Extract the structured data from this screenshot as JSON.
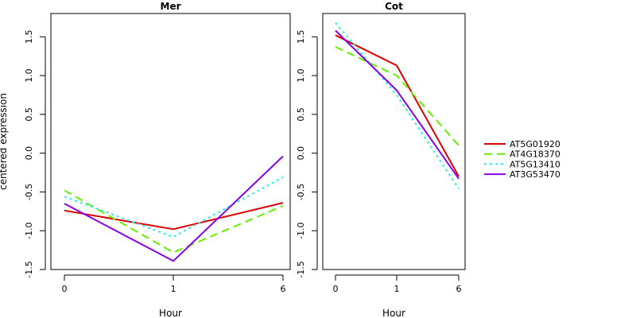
{
  "chart_data": [
    {
      "type": "line",
      "title": "Mer",
      "xlabel": "Hour",
      "ylabel": "centered expression",
      "x": [
        "0",
        "1",
        "6"
      ],
      "ylim": [
        -1.5,
        1.8
      ],
      "yticks": [
        "-1.5",
        "-1.0",
        "-0.5",
        "0.0",
        "0.5",
        "1.0",
        "1.5"
      ],
      "grid": false,
      "series": [
        {
          "name": "AT5G01920",
          "values": [
            -0.74,
            -0.98,
            -0.64
          ]
        },
        {
          "name": "AT4G18370",
          "values": [
            -0.48,
            -1.28,
            -0.68
          ]
        },
        {
          "name": "AT5G13410",
          "values": [
            -0.56,
            -1.08,
            -0.31
          ]
        },
        {
          "name": "AT3G53470",
          "values": [
            -0.65,
            -1.39,
            -0.04
          ]
        }
      ]
    },
    {
      "type": "line",
      "title": "Cot",
      "xlabel": "Hour",
      "ylabel": "",
      "x": [
        "0",
        "1",
        "6"
      ],
      "ylim": [
        -1.5,
        1.8
      ],
      "yticks": [
        "-1.5",
        "-1.0",
        "-0.5",
        "0.0",
        "0.5",
        "1.0",
        "1.5"
      ],
      "grid": false,
      "series": [
        {
          "name": "AT5G01920",
          "values": [
            1.52,
            1.13,
            -0.3
          ]
        },
        {
          "name": "AT4G18370",
          "values": [
            1.37,
            1.0,
            0.1
          ]
        },
        {
          "name": "AT5G13410",
          "values": [
            1.68,
            0.75,
            -0.46
          ]
        },
        {
          "name": "AT3G53470",
          "values": [
            1.58,
            0.81,
            -0.33
          ]
        }
      ]
    }
  ],
  "legend": {
    "placement": "right",
    "entries": [
      {
        "label": "AT5G01920",
        "color": "#dd0000",
        "dash": "solid"
      },
      {
        "label": "AT4G18370",
        "color": "#66ee00",
        "dash": "dashed"
      },
      {
        "label": "AT5G13410",
        "color": "#22eeee",
        "dash": "dotted"
      },
      {
        "label": "AT3G53470",
        "color": "#8800ee",
        "dash": "solid"
      }
    ]
  }
}
